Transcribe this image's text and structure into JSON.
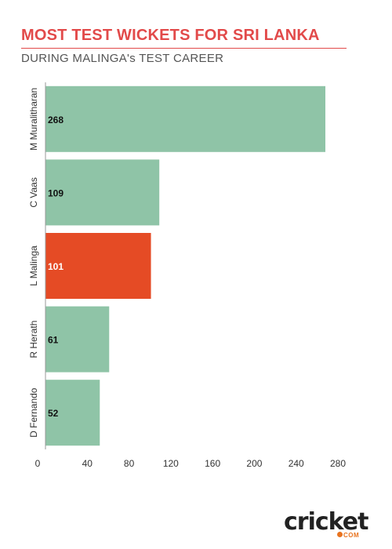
{
  "header": {
    "title": "MOST TEST WICKETS FOR SRI LANKA",
    "subtitle": "DURING MALINGA's TEST CAREER"
  },
  "logo": {
    "text": "cricket",
    "suffix": "COM"
  },
  "colors": {
    "title": "#e24a4a",
    "bar_default": "#8fc4a7",
    "bar_highlight": "#e54b25",
    "axis": "#999999"
  },
  "chart_data": {
    "type": "bar",
    "orientation": "horizontal",
    "categories": [
      "M Muralitharan",
      "C Vaas",
      "L Malinga",
      "R Herath",
      "D Fernando"
    ],
    "values": [
      268,
      109,
      101,
      61,
      52
    ],
    "highlight": "L Malinga",
    "xlim": [
      0,
      280
    ],
    "xticks": [
      0,
      40,
      80,
      120,
      160,
      200,
      240,
      280
    ],
    "title": "MOST TEST WICKETS FOR SRI LANKA",
    "subtitle": "DURING MALINGA's TEST CAREER",
    "xlabel": "",
    "ylabel": "",
    "grid": false
  }
}
